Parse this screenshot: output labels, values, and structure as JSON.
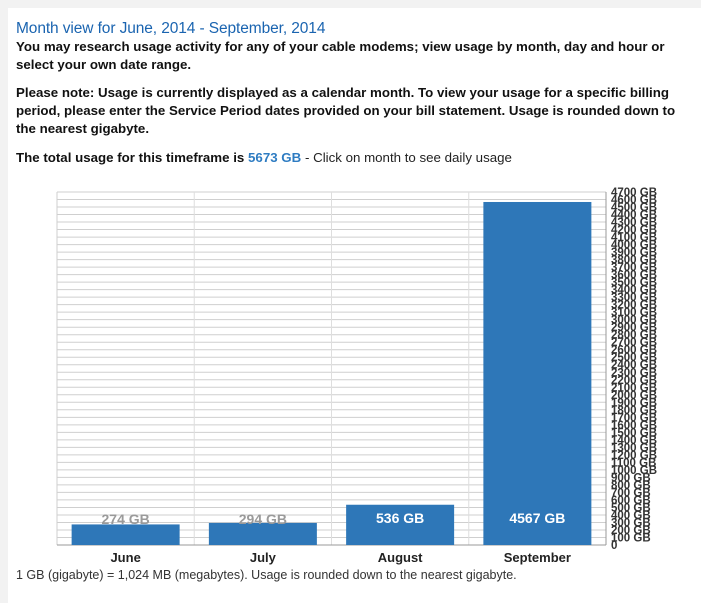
{
  "header": {
    "title": "Month view for June, 2014 - September, 2014"
  },
  "intro_text": "You may research usage activity for any of your cable modems; view usage by month, day and hour or select your own date range.",
  "note_text": "Please note: Usage is currently displayed as a calendar month. To view your usage for a specific billing period, please enter the Service Period dates provided on your bill statement. Usage is rounded down to the nearest gigabyte.",
  "total": {
    "label": "The total usage for this timeframe is",
    "value": "5673 GB",
    "hint": "- Click on month to see daily usage"
  },
  "footer_text": "1 GB (gigabyte) = 1,024 MB (megabytes). Usage is rounded down to the nearest gigabyte.",
  "chart_data": {
    "type": "bar",
    "categories": [
      "June",
      "July",
      "August",
      "September"
    ],
    "values": [
      274,
      294,
      536,
      4567
    ],
    "data_labels": [
      "274 GB",
      "294 GB",
      "536 GB",
      "4567 GB"
    ],
    "y_ticks": [
      0,
      100,
      200,
      300,
      400,
      500,
      600,
      700,
      800,
      900,
      1000,
      1100,
      1200,
      1300,
      1400,
      1500,
      1600,
      1700,
      1800,
      1900,
      2000,
      2100,
      2200,
      2300,
      2400,
      2500,
      2600,
      2700,
      2800,
      2900,
      3000,
      3100,
      3200,
      3300,
      3400,
      3500,
      3600,
      3700,
      3800,
      3900,
      4000,
      4100,
      4200,
      4300,
      4400,
      4500,
      4600,
      4700
    ],
    "y_tick_labels": [
      "0",
      "100 GB",
      "200 GB",
      "300 GB",
      "400 GB",
      "500 GB",
      "600 GB",
      "700 GB",
      "800 GB",
      "900 GB",
      "1000 GB",
      "1100 GB",
      "1200 GB",
      "1300 GB",
      "1400 GB",
      "1500 GB",
      "1600 GB",
      "1700 GB",
      "1800 GB",
      "1900 GB",
      "2000 GB",
      "2100 GB",
      "2200 GB",
      "2300 GB",
      "2400 GB",
      "2500 GB",
      "2600 GB",
      "2700 GB",
      "2800 GB",
      "2900 GB",
      "3000 GB",
      "3100 GB",
      "3200 GB",
      "3300 GB",
      "3400 GB",
      "3500 GB",
      "3600 GB",
      "3700 GB",
      "3800 GB",
      "3900 GB",
      "4000 GB",
      "4100 GB",
      "4200 GB",
      "4300 GB",
      "4400 GB",
      "4500 GB",
      "4600 GB",
      "4700 GB"
    ],
    "grid": true,
    "colors": {
      "bar": "#2e77b8",
      "grid": "#cfcfcf",
      "label_inside": "#ffffff",
      "label_outside": "#9a9a9a"
    }
  }
}
